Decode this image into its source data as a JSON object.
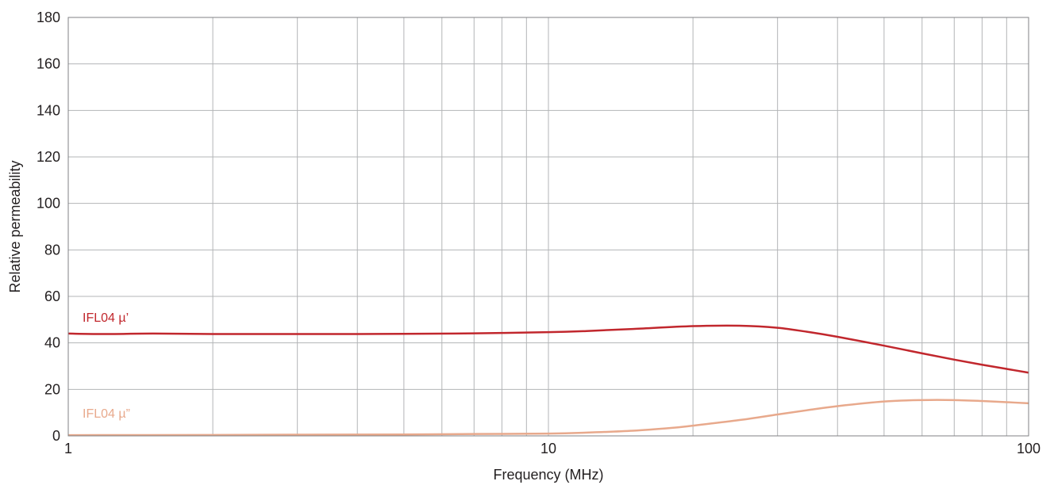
{
  "chart_data": {
    "type": "line",
    "title": "",
    "xlabel": "Frequency (MHz)",
    "ylabel": "Relative permeability",
    "xscale": "log",
    "xlim": [
      1,
      100
    ],
    "ylim": [
      0,
      180
    ],
    "grid": true,
    "xticks": [
      1,
      10,
      100
    ],
    "xtick_labels": [
      "1",
      "10",
      "100"
    ],
    "yticks": [
      0,
      20,
      40,
      60,
      80,
      100,
      120,
      140,
      160,
      180
    ],
    "ytick_labels": [
      "0",
      "20",
      "40",
      "60",
      "80",
      "100",
      "120",
      "140",
      "160",
      "180"
    ],
    "series": [
      {
        "name": "IFL04 µ’",
        "color": "#c1272d",
        "x": [
          1,
          1.2,
          1.5,
          2,
          3,
          4,
          5,
          7,
          10,
          12,
          15,
          20,
          25,
          30,
          35,
          40,
          50,
          60,
          70,
          80,
          90,
          100
        ],
        "y": [
          44,
          43.8,
          44,
          43.8,
          43.8,
          43.8,
          43.9,
          44.1,
          44.6,
          45.1,
          46,
          47.2,
          47.4,
          46.5,
          44.6,
          42.6,
          38.8,
          35.5,
          32.8,
          30.6,
          28.8,
          27.2
        ]
      },
      {
        "name": "IFL04 µ”",
        "color": "#e8a98c",
        "x": [
          1,
          2,
          3,
          5,
          7,
          10,
          12,
          15,
          18,
          20,
          25,
          30,
          35,
          40,
          50,
          60,
          70,
          80,
          90,
          100
        ],
        "y": [
          0.3,
          0.4,
          0.5,
          0.6,
          0.8,
          1,
          1.4,
          2.2,
          3.4,
          4.4,
          6.8,
          9.2,
          11.2,
          12.8,
          14.8,
          15.4,
          15.4,
          15,
          14.5,
          14
        ]
      }
    ]
  }
}
